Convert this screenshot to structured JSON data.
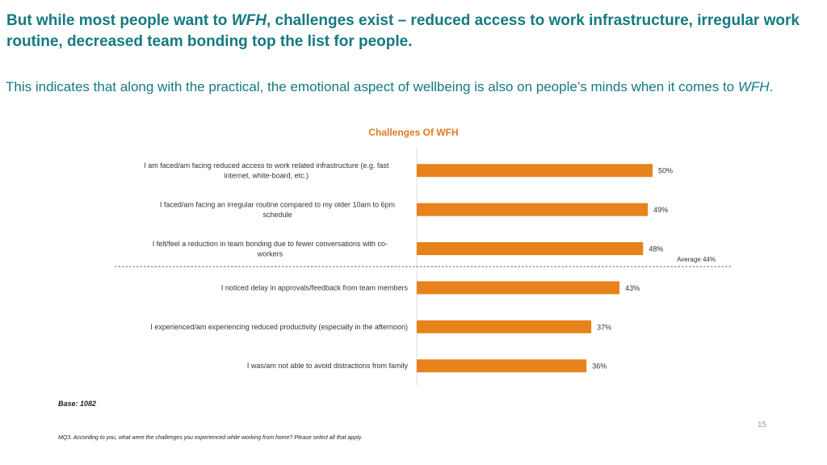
{
  "slide": {
    "title_parts": {
      "pre": "But while most people want to ",
      "em": "WFH",
      "post": ", challenges exist – reduced access to work infrastructure, irregular work routine, decreased team bonding top the list for people."
    },
    "subtitle_parts": {
      "pre": "This indicates that along with the practical, the emotional aspect of wellbeing is also on people’s minds when it comes to ",
      "em": "WFH",
      "post": "."
    },
    "base_note": "Base: 1082",
    "page_number": "15",
    "footnote": "MQ3. According to you, what were the challenges  you experienced while working from home? Please select all that apply."
  },
  "chart_data": {
    "type": "bar",
    "orientation": "horizontal",
    "title": "Challenges Of WFH",
    "categories": [
      [
        "I am faced/am facing reduced access to work related infrastructure (e.g. fast",
        "internet, white-board, etc.)"
      ],
      [
        "I faced/am facing an irregular routine compared to my older 10am to 6pm",
        "schedule"
      ],
      [
        "I felt/feel a reduction in team bonding due to fewer conversations with co-",
        "workers"
      ],
      [
        "I noticed delay in approvals/feedback from team members"
      ],
      [
        "I experienced/am experiencing reduced productivity (especially in the afternoon)"
      ],
      [
        "I was/am not able to avoid distractions from family"
      ]
    ],
    "values": [
      50,
      49,
      48,
      43,
      37,
      36
    ],
    "value_labels": [
      "50%",
      "49%",
      "48%",
      "43%",
      "37%",
      "36%"
    ],
    "unit": "%",
    "average": {
      "value": 44,
      "label": "Average 44%"
    },
    "bar_color": "#e8821c",
    "xlim": [
      0,
      100
    ],
    "grid": false,
    "legend": "none"
  }
}
